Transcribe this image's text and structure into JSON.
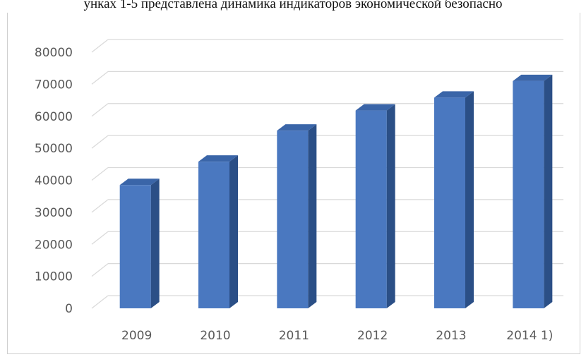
{
  "caption": "унках 1-5 представлена динамика индикаторов экономической безопасно",
  "chart_data": {
    "type": "bar",
    "style": "3d-column",
    "title": "",
    "xlabel": "",
    "ylabel": "",
    "categories": [
      "2009",
      "2010",
      "2011",
      "2012",
      "2013",
      "2014 1)"
    ],
    "values": [
      38500,
      45800,
      55500,
      61800,
      65800,
      71000
    ],
    "ylim": [
      0,
      80000
    ],
    "yticks": [
      0,
      10000,
      20000,
      30000,
      40000,
      50000,
      60000,
      70000,
      80000
    ],
    "grid": true,
    "legend": "none",
    "colors": {
      "bar_front": "#4a78c0",
      "bar_side": "#2b4f86",
      "bar_top": "#3a65a8",
      "grid": "#d9d9d9",
      "text": "#595959"
    }
  }
}
